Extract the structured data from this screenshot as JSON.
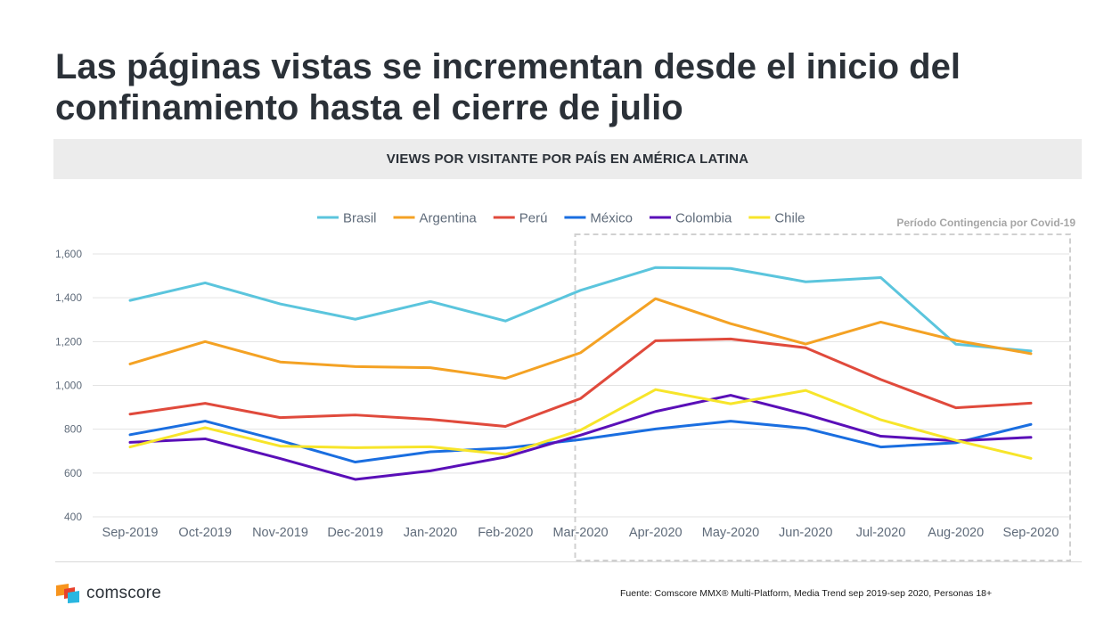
{
  "title": "Las páginas vistas se incrementan desde el inicio del confinamiento hasta el cierre de julio",
  "subtitle": "VIEWS POR VISITANTE POR PAÍS EN AMÉRICA LATINA",
  "contingency_label": "Período Contingencia por Covid-19",
  "logo_text": "comscore",
  "source": "Fuente: Comscore MMX® Multi-Platform, Media Trend sep 2019-sep 2020, Personas 18+",
  "chart_data": {
    "type": "line",
    "categories": [
      "Sep-2019",
      "Oct-2019",
      "Nov-2019",
      "Dec-2019",
      "Jan-2020",
      "Feb-2020",
      "Mar-2020",
      "Apr-2020",
      "May-2020",
      "Jun-2020",
      "Jul-2020",
      "Aug-2020",
      "Sep-2020"
    ],
    "ylim": [
      400,
      1600
    ],
    "yticks": [
      400,
      600,
      800,
      1000,
      1200,
      1400,
      1600
    ],
    "ytick_labels": [
      "400",
      "600",
      "800",
      "1,000",
      "1,200",
      "1,400",
      "1,600"
    ],
    "grid": true,
    "legend_position": "top",
    "highlight_range": [
      "Mar-2020",
      "Sep-2020"
    ],
    "series": [
      {
        "name": "Brasil",
        "color": "#5bc5dd",
        "values": [
          1388,
          1468,
          1372,
          1302,
          1383,
          1294,
          1434,
          1538,
          1534,
          1473,
          1492,
          1188,
          1157
        ]
      },
      {
        "name": "Argentina",
        "color": "#f4a224",
        "values": [
          1098,
          1200,
          1107,
          1086,
          1081,
          1032,
          1149,
          1396,
          1282,
          1189,
          1289,
          1205,
          1145
        ]
      },
      {
        "name": "Perú",
        "color": "#e04a3c",
        "values": [
          869,
          918,
          853,
          865,
          845,
          813,
          940,
          1204,
          1212,
          1172,
          1027,
          898,
          919
        ]
      },
      {
        "name": "México",
        "color": "#1a6ee0",
        "values": [
          775,
          837,
          748,
          650,
          697,
          714,
          753,
          801,
          837,
          804,
          719,
          738,
          822
        ]
      },
      {
        "name": "Colombia",
        "color": "#5a0fb8",
        "values": [
          740,
          756,
          666,
          571,
          610,
          673,
          773,
          881,
          955,
          868,
          768,
          747,
          763
        ]
      },
      {
        "name": "Chile",
        "color": "#f7e52a",
        "values": [
          719,
          807,
          723,
          716,
          720,
          685,
          796,
          981,
          916,
          977,
          843,
          749,
          667
        ]
      }
    ]
  }
}
